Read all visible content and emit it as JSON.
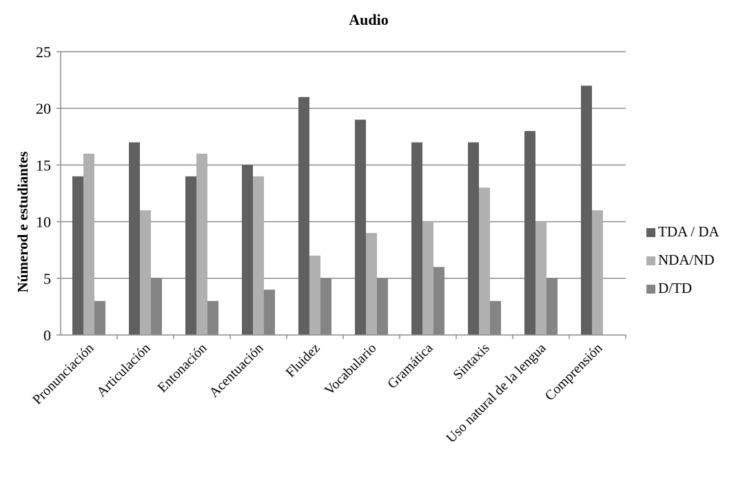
{
  "chart_data": {
    "type": "bar",
    "title": "Audio",
    "xlabel": "",
    "ylabel": "Númerod e estudiantes",
    "ylim": [
      0,
      25
    ],
    "yticks": [
      0,
      5,
      10,
      15,
      20,
      25
    ],
    "grid": "horizontal",
    "legend_position": "right",
    "categories": [
      "Pronunciación",
      "Articulación",
      "Entonación",
      "Acentuación",
      "Fluidez",
      "Vocabulario",
      "Gramática",
      "Sintaxis",
      "Uso natural de la lengua",
      "Comprensión"
    ],
    "series": [
      {
        "name": "TDA / DA",
        "color": "#606060",
        "values": [
          14,
          17,
          14,
          15,
          21,
          19,
          17,
          17,
          18,
          22
        ]
      },
      {
        "name": "NDA/ND",
        "color": "#b0b0b0",
        "values": [
          16,
          11,
          16,
          14,
          7,
          9,
          10,
          13,
          10,
          11
        ]
      },
      {
        "name": "D/TD",
        "color": "#858585",
        "values": [
          3,
          5,
          3,
          4,
          5,
          5,
          6,
          3,
          5,
          0
        ]
      }
    ]
  }
}
